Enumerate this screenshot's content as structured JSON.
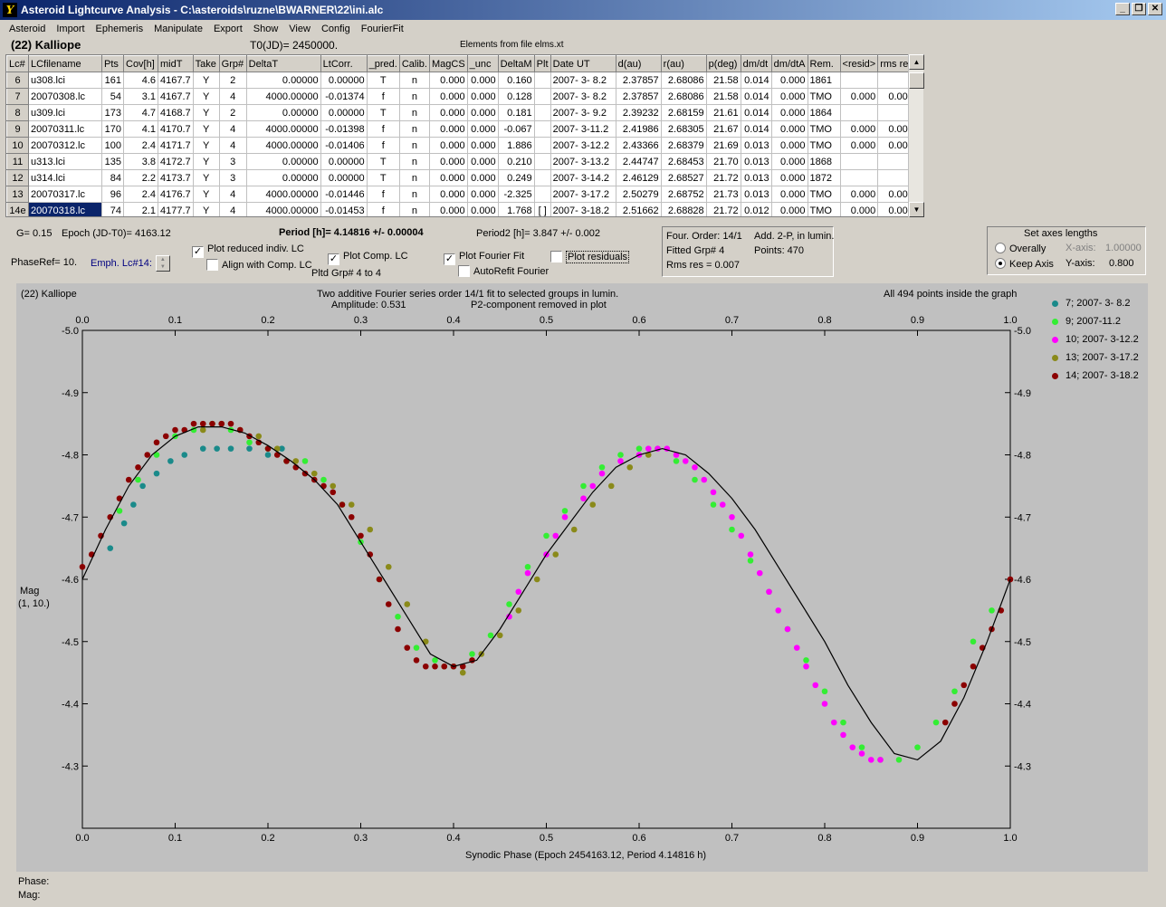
{
  "window": {
    "title": "Asteroid Lightcurve Analysis - C:\\asteroids\\ruzne\\BWARNER\\22\\ini.alc",
    "icon_glyph": "Y",
    "minimize": "_",
    "restore": "❐",
    "close": "✕"
  },
  "menu": [
    "Asteroid",
    "Import",
    "Ephemeris",
    "Manipulate",
    "Export",
    "Show",
    "View",
    "Config",
    "FourierFit"
  ],
  "header": {
    "object": "(22) Kalliope",
    "t0": "T0(JD)= 2450000.",
    "elements": "Elements from file elms.xt"
  },
  "table": {
    "columns": [
      "Lc#",
      "LCfilename",
      "Pts",
      "Cov[h]",
      "midT",
      "Take",
      "Grp#",
      "DeltaT",
      "LtCorr.",
      "_pred.",
      "Calib.",
      "MagCS",
      "_unc",
      "DeltaM",
      "Plt",
      "Date UT",
      "d(au)",
      "r(au)",
      "p(deg)",
      "dm/dt",
      "dm/dtA",
      "Rem.",
      "<resid>",
      "rms res"
    ],
    "rows": [
      [
        "6",
        "u308.lci",
        "161",
        "4.6",
        "4167.7",
        "Y",
        "2",
        "0.00000",
        "0.00000",
        "T",
        "n",
        "0.000",
        "0.000",
        "0.160",
        "",
        "2007- 3- 8.2",
        "2.37857",
        "2.68086",
        "21.58",
        "0.014",
        "0.000",
        "1861",
        "",
        ""
      ],
      [
        "7",
        "20070308.lc",
        "54",
        "3.1",
        "4167.7",
        "Y",
        "4",
        "4000.00000",
        "-0.01374",
        "f",
        "n",
        "0.000",
        "0.000",
        "0.128",
        "",
        "2007- 3- 8.2",
        "2.37857",
        "2.68086",
        "21.58",
        "0.014",
        "0.000",
        "TMO",
        "0.000",
        "0.005"
      ],
      [
        "8",
        "u309.lci",
        "173",
        "4.7",
        "4168.7",
        "Y",
        "2",
        "0.00000",
        "0.00000",
        "T",
        "n",
        "0.000",
        "0.000",
        "0.181",
        "",
        "2007- 3- 9.2",
        "2.39232",
        "2.68159",
        "21.61",
        "0.014",
        "0.000",
        "1864",
        "",
        ""
      ],
      [
        "9",
        "20070311.lc",
        "170",
        "4.1",
        "4170.7",
        "Y",
        "4",
        "4000.00000",
        "-0.01398",
        "f",
        "n",
        "0.000",
        "0.000",
        "-0.067",
        "",
        "2007- 3-11.2",
        "2.41986",
        "2.68305",
        "21.67",
        "0.014",
        "0.000",
        "TMO",
        "0.000",
        "0.005"
      ],
      [
        "10",
        "20070312.lc",
        "100",
        "2.4",
        "4171.7",
        "Y",
        "4",
        "4000.00000",
        "-0.01406",
        "f",
        "n",
        "0.000",
        "0.000",
        "1.886",
        "",
        "2007- 3-12.2",
        "2.43366",
        "2.68379",
        "21.69",
        "0.013",
        "0.000",
        "TMO",
        "0.000",
        "0.005"
      ],
      [
        "11",
        "u313.lci",
        "135",
        "3.8",
        "4172.7",
        "Y",
        "3",
        "0.00000",
        "0.00000",
        "T",
        "n",
        "0.000",
        "0.000",
        "0.210",
        "",
        "2007- 3-13.2",
        "2.44747",
        "2.68453",
        "21.70",
        "0.013",
        "0.000",
        "1868",
        "",
        ""
      ],
      [
        "12",
        "u314.lci",
        "84",
        "2.2",
        "4173.7",
        "Y",
        "3",
        "0.00000",
        "0.00000",
        "T",
        "n",
        "0.000",
        "0.000",
        "0.249",
        "",
        "2007- 3-14.2",
        "2.46129",
        "2.68527",
        "21.72",
        "0.013",
        "0.000",
        "1872",
        "",
        ""
      ],
      [
        "13",
        "20070317.lc",
        "96",
        "2.4",
        "4176.7",
        "Y",
        "4",
        "4000.00000",
        "-0.01446",
        "f",
        "n",
        "0.000",
        "0.000",
        "-2.325",
        "",
        "2007- 3-17.2",
        "2.50279",
        "2.68752",
        "21.73",
        "0.013",
        "0.000",
        "TMO",
        "0.000",
        "0.008"
      ],
      [
        "14e",
        "20070318.lc",
        "74",
        "2.1",
        "4177.7",
        "Y",
        "4",
        "4000.00000",
        "-0.01453",
        "f",
        "n",
        "0.000",
        "0.000",
        "1.768",
        "[ ]",
        "2007- 3-18.2",
        "2.51662",
        "2.68828",
        "21.72",
        "0.012",
        "0.000",
        "TMO",
        "0.000",
        "0.008"
      ]
    ]
  },
  "controls": {
    "g": "G= 0.15",
    "epoch": "Epoch (JD-T0)= 4163.12",
    "period": "Period [h]= 4.14816 +/- 0.00004",
    "period2": "Period2 [h]= 3.847 +/- 0.002",
    "phaseref": "PhaseRef= 10.",
    "emph": "Emph. Lc#14:",
    "plot_reduced": "Plot reduced indiv. LC",
    "align_comp": "Align with Comp. LC",
    "plot_comp": "Plot Comp. LC",
    "pltd_grp": "Pltd Grp#  4  to   4",
    "plot_fourier": "Plot Fourier Fit",
    "autorefit": "AutoRefit Fourier",
    "plot_residuals": "Plot residuals",
    "four_order": "Four. Order: 14/1",
    "fitted_grp": "Fitted Grp# 4",
    "rms_res": "Rms res    = 0.007",
    "add_2p": "Add. 2-P, in lumin.",
    "points": "Points: 470",
    "axes_title": "Set axes lengths",
    "overally": "Overally",
    "keep_axis": "Keep Axis",
    "xaxis_label": "X-axis:",
    "xaxis_value": "1.00000",
    "yaxis_label": "Y-axis:",
    "yaxis_value": "0.800"
  },
  "graph": {
    "name": "(22) Kalliope",
    "title1": "Two additive Fourier series order 14/1 fit to selected groups in lumin.",
    "title2": "Amplitude: 0.531",
    "title3": "P2-component removed in plot",
    "inside": "All 494 points inside the graph",
    "ylabel1": "Mag",
    "ylabel2": "(1, 10.)",
    "xlabel": "Synodic Phase (Epoch 2454163.12, Period 4.14816 h)"
  },
  "chart_data": {
    "type": "scatter",
    "xlim": [
      0.0,
      1.0
    ],
    "ylim": [
      -5.0,
      -4.2
    ],
    "x_ticks": [
      "0.0",
      "0.1",
      "0.2",
      "0.3",
      "0.4",
      "0.5",
      "0.6",
      "0.7",
      "0.8",
      "0.9",
      "1.0"
    ],
    "y_ticks": [
      "-5.0",
      "-4.9",
      "-4.8",
      "-4.7",
      "-4.6",
      "-4.5",
      "-4.4",
      "-4.3"
    ],
    "legend_placement": "right",
    "series": [
      {
        "name": "7; 2007- 3- 8.2",
        "color": "#1a8a8a",
        "x": [
          0.03,
          0.045,
          0.055,
          0.065,
          0.08,
          0.095,
          0.11,
          0.13,
          0.145,
          0.16,
          0.18,
          0.2,
          0.215
        ],
        "y": [
          -4.65,
          -4.69,
          -4.72,
          -4.75,
          -4.77,
          -4.79,
          -4.8,
          -4.81,
          -4.81,
          -4.81,
          -4.81,
          -4.8,
          -4.81
        ]
      },
      {
        "name": "9; 2007-11.2",
        "color": "#33ee33",
        "x": [
          0.04,
          0.06,
          0.08,
          0.1,
          0.12,
          0.14,
          0.16,
          0.18,
          0.2,
          0.22,
          0.24,
          0.26,
          0.28,
          0.3,
          0.32,
          0.34,
          0.36,
          0.38,
          0.4,
          0.42,
          0.44,
          0.46,
          0.48,
          0.5,
          0.52,
          0.54,
          0.56,
          0.58,
          0.6,
          0.62,
          0.64,
          0.66,
          0.68,
          0.7,
          0.72,
          0.74,
          0.76,
          0.78,
          0.8,
          0.82,
          0.84,
          0.86,
          0.88,
          0.9,
          0.92,
          0.94,
          0.96,
          0.98
        ],
        "y": [
          -4.71,
          -4.76,
          -4.8,
          -4.83,
          -4.84,
          -4.85,
          -4.84,
          -4.82,
          -4.81,
          -4.79,
          -4.79,
          -4.76,
          -4.72,
          -4.66,
          -4.6,
          -4.54,
          -4.49,
          -4.47,
          -4.46,
          -4.48,
          -4.51,
          -4.56,
          -4.62,
          -4.67,
          -4.71,
          -4.75,
          -4.78,
          -4.8,
          -4.81,
          -4.81,
          -4.79,
          -4.76,
          -4.72,
          -4.68,
          -4.63,
          -4.58,
          -4.52,
          -4.47,
          -4.42,
          -4.37,
          -4.33,
          -4.31,
          -4.31,
          -4.33,
          -4.37,
          -4.42,
          -4.5,
          -4.55
        ]
      },
      {
        "name": "10; 2007- 3-12.2",
        "color": "#ff00ff",
        "x": [
          0.46,
          0.47,
          0.48,
          0.5,
          0.51,
          0.52,
          0.54,
          0.55,
          0.56,
          0.58,
          0.6,
          0.61,
          0.62,
          0.63,
          0.64,
          0.65,
          0.66,
          0.67,
          0.68,
          0.69,
          0.7,
          0.71,
          0.72,
          0.73,
          0.74,
          0.75,
          0.76,
          0.77,
          0.78,
          0.79,
          0.8,
          0.81,
          0.82,
          0.83,
          0.84,
          0.85,
          0.86
        ],
        "y": [
          -4.54,
          -4.58,
          -4.61,
          -4.64,
          -4.67,
          -4.7,
          -4.73,
          -4.75,
          -4.77,
          -4.79,
          -4.8,
          -4.81,
          -4.81,
          -4.81,
          -4.8,
          -4.79,
          -4.78,
          -4.76,
          -4.74,
          -4.72,
          -4.7,
          -4.67,
          -4.64,
          -4.61,
          -4.58,
          -4.55,
          -4.52,
          -4.49,
          -4.46,
          -4.43,
          -4.4,
          -4.37,
          -4.35,
          -4.33,
          -4.32,
          -4.31,
          -4.31
        ]
      },
      {
        "name": "13; 2007- 3-17.2",
        "color": "#8a8a1a",
        "x": [
          0.13,
          0.15,
          0.17,
          0.19,
          0.21,
          0.23,
          0.25,
          0.27,
          0.29,
          0.31,
          0.33,
          0.35,
          0.37,
          0.39,
          0.41,
          0.43,
          0.45,
          0.47,
          0.49,
          0.51,
          0.53,
          0.55,
          0.57,
          0.59,
          0.61
        ],
        "y": [
          -4.84,
          -4.85,
          -4.84,
          -4.83,
          -4.81,
          -4.79,
          -4.77,
          -4.75,
          -4.72,
          -4.68,
          -4.62,
          -4.56,
          -4.5,
          -4.46,
          -4.45,
          -4.48,
          -4.51,
          -4.55,
          -4.6,
          -4.64,
          -4.68,
          -4.72,
          -4.75,
          -4.78,
          -4.8
        ]
      },
      {
        "name": "14; 2007- 3-18.2",
        "color": "#8b0000",
        "x": [
          0.0,
          0.01,
          0.02,
          0.03,
          0.04,
          0.05,
          0.06,
          0.07,
          0.08,
          0.09,
          0.1,
          0.11,
          0.12,
          0.13,
          0.14,
          0.15,
          0.16,
          0.17,
          0.18,
          0.19,
          0.2,
          0.21,
          0.22,
          0.23,
          0.24,
          0.25,
          0.26,
          0.27,
          0.28,
          0.29,
          0.3,
          0.31,
          0.32,
          0.33,
          0.34,
          0.35,
          0.36,
          0.37,
          0.38,
          0.39,
          0.4,
          0.41,
          0.42,
          0.93,
          0.94,
          0.95,
          0.96,
          0.97,
          0.98,
          0.99,
          1.0
        ],
        "y": [
          -4.62,
          -4.64,
          -4.67,
          -4.7,
          -4.73,
          -4.76,
          -4.78,
          -4.8,
          -4.82,
          -4.83,
          -4.84,
          -4.84,
          -4.85,
          -4.85,
          -4.85,
          -4.85,
          -4.85,
          -4.84,
          -4.83,
          -4.82,
          -4.81,
          -4.8,
          -4.79,
          -4.78,
          -4.77,
          -4.76,
          -4.75,
          -4.74,
          -4.72,
          -4.7,
          -4.67,
          -4.64,
          -4.6,
          -4.56,
          -4.52,
          -4.49,
          -4.47,
          -4.46,
          -4.46,
          -4.46,
          -4.46,
          -4.46,
          -4.47,
          -4.37,
          -4.4,
          -4.43,
          -4.46,
          -4.49,
          -4.52,
          -4.55,
          -4.6
        ]
      }
    ],
    "fit": {
      "x": [
        0.0,
        0.025,
        0.05,
        0.075,
        0.1,
        0.125,
        0.15,
        0.175,
        0.2,
        0.225,
        0.25,
        0.275,
        0.3,
        0.325,
        0.35,
        0.375,
        0.4,
        0.425,
        0.45,
        0.475,
        0.5,
        0.525,
        0.55,
        0.575,
        0.6,
        0.625,
        0.65,
        0.675,
        0.7,
        0.725,
        0.75,
        0.775,
        0.8,
        0.825,
        0.85,
        0.875,
        0.9,
        0.925,
        0.95,
        0.975,
        1.0
      ],
      "y": [
        -4.6,
        -4.68,
        -4.75,
        -4.8,
        -4.83,
        -4.845,
        -4.845,
        -4.835,
        -4.815,
        -4.79,
        -4.76,
        -4.72,
        -4.66,
        -4.6,
        -4.54,
        -4.48,
        -4.46,
        -4.47,
        -4.52,
        -4.58,
        -4.64,
        -4.69,
        -4.74,
        -4.78,
        -4.8,
        -4.81,
        -4.8,
        -4.77,
        -4.73,
        -4.68,
        -4.62,
        -4.56,
        -4.5,
        -4.43,
        -4.37,
        -4.32,
        -4.31,
        -4.34,
        -4.41,
        -4.5,
        -4.6
      ]
    }
  }
}
